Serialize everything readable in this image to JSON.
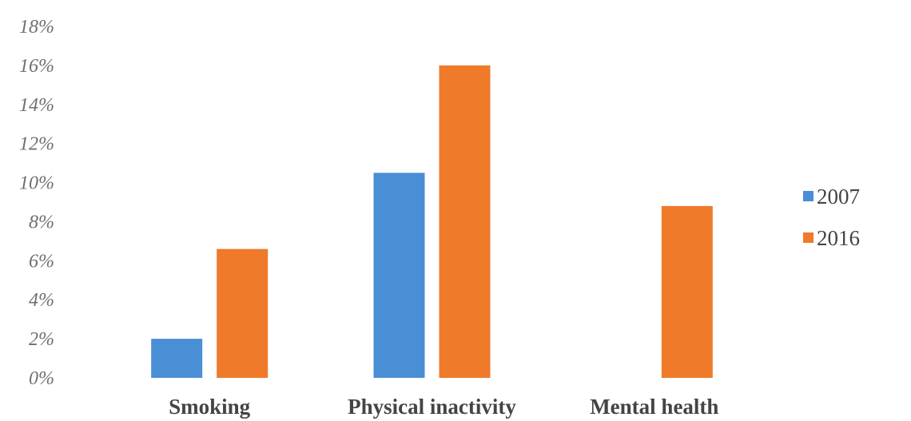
{
  "chart_data": {
    "type": "bar",
    "title": "",
    "xlabel": "",
    "ylabel": "",
    "categories": [
      "Smoking",
      "Physical inactivity",
      "Mental health"
    ],
    "series": [
      {
        "name": "2007",
        "color": "#4a8fd6",
        "values": [
          2.0,
          10.5,
          null
        ]
      },
      {
        "name": "2016",
        "color": "#ee7a2a",
        "values": [
          6.6,
          16.0,
          8.8
        ]
      }
    ],
    "ylim": [
      0,
      18
    ],
    "y_ticks": [
      "0%",
      "2%",
      "4%",
      "6%",
      "8%",
      "10%",
      "12%",
      "14%",
      "16%",
      "18%"
    ],
    "grid": false,
    "legend_position": "right"
  }
}
